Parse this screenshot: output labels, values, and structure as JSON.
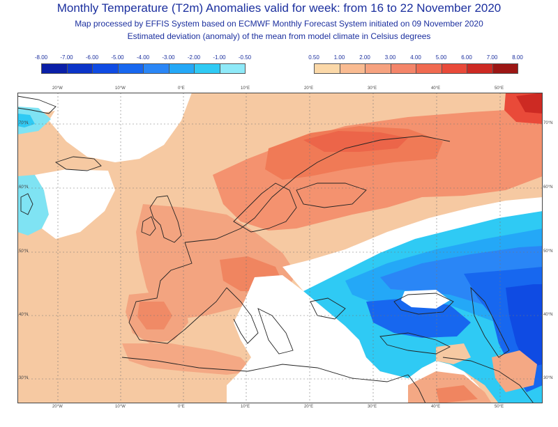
{
  "title": "Monthly Temperature (T2m) Anomalies valid for week: from 16 to 22 November 2020",
  "subtitle1": "Map processed by EFFIS System based on ECMWF Monthly Forecast System initiated on 09 November 2020",
  "subtitle2": "Estimated deviation (anomaly) of the mean from model climate in Celsius degrees",
  "legend_cold": {
    "labels": [
      "-8.00",
      "-7.00",
      "-6.00",
      "-5.00",
      "-4.00",
      "-3.00",
      "-2.00",
      "-1.00",
      "-0.50"
    ],
    "colors": [
      "#0a1fa7",
      "#0b34c8",
      "#0f4be3",
      "#1767ef",
      "#2a86f6",
      "#24a8f7",
      "#2fcaf4",
      "#8ee9f8"
    ]
  },
  "legend_warm": {
    "labels": [
      "0.50",
      "1.00",
      "2.00",
      "3.00",
      "4.00",
      "5.00",
      "6.00",
      "7.00",
      "8.00"
    ],
    "colors": [
      "#fbd8a8",
      "#f9bb91",
      "#f6a27f",
      "#f48569",
      "#f06a50",
      "#e94a39",
      "#cd2a23",
      "#9c1614"
    ]
  },
  "map": {
    "lon_labels": [
      "20°W",
      "10°W",
      "0°E",
      "10°E",
      "20°E",
      "30°E",
      "40°E",
      "50°E"
    ],
    "lat_labels": [
      "70°N",
      "60°N",
      "50°N",
      "40°N",
      "30°N"
    ],
    "background_color": "#ffffff",
    "land_sea_color": "#f5c4a0"
  }
}
